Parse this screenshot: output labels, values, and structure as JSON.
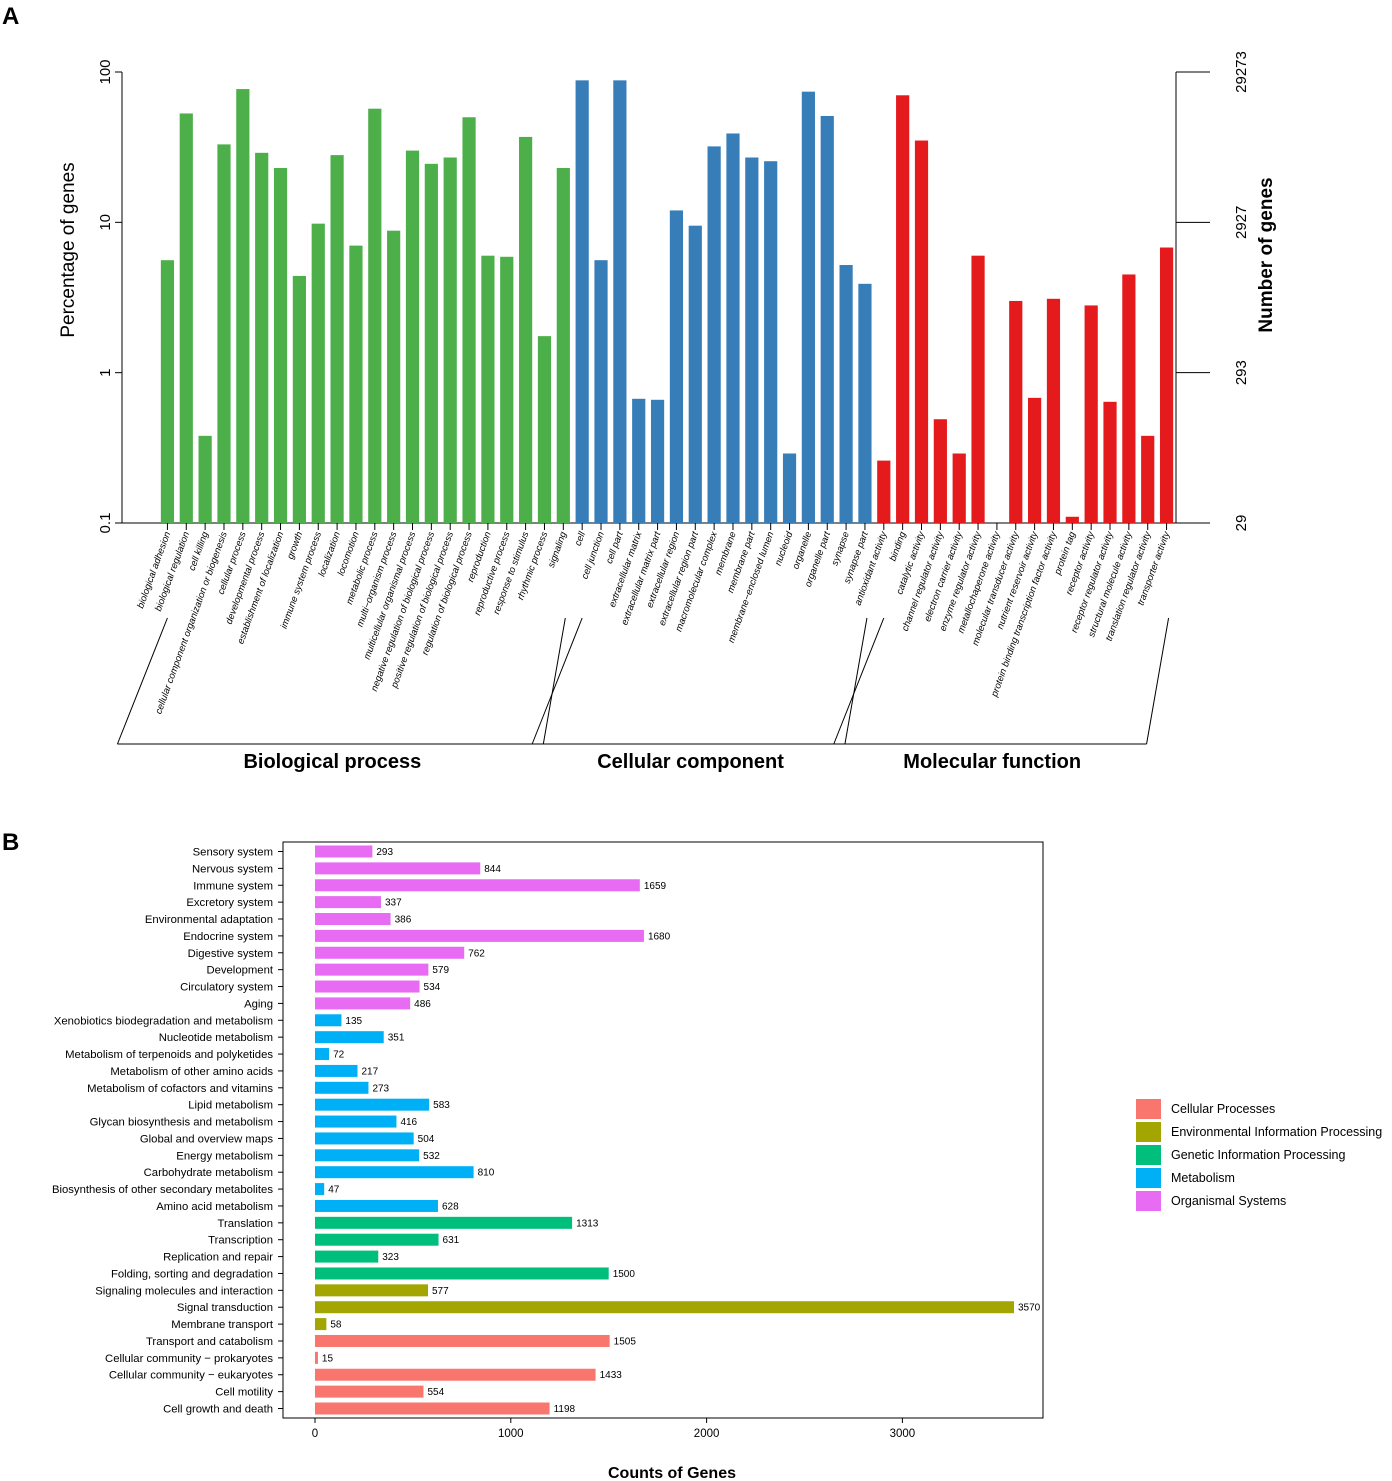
{
  "panel_a_label": "A",
  "panel_b_label": "B",
  "colors": {
    "biological_process": "#4daf4a",
    "cellular_component": "#377eb8",
    "molecular_function": "#e41a1c",
    "cellular_processes": "#f8766d",
    "environmental_information_processing": "#a3a500",
    "genetic_information_processing": "#00bf7d",
    "metabolism": "#00b0f6",
    "organismal_systems": "#e76bf3"
  },
  "chart_data": [
    {
      "type": "bar",
      "title": "",
      "ylabel": "Percentage of genes",
      "ylabel_right": "Number of genes",
      "yscale": "log",
      "ylim": [
        0.1,
        100
      ],
      "yticks": [
        "0.1",
        "1",
        "10",
        "100"
      ],
      "yticks_right": [
        "29",
        "293",
        "2927",
        "29273"
      ],
      "groups": [
        {
          "name": "Biological process",
          "color_key": "biological_process",
          "categories": [
            "biological adhesion",
            "biological regulation",
            "cell killing",
            "cellular component organization or biogenesis",
            "cellular process",
            "developmental process",
            "establishment of localization",
            "growth",
            "immune system process",
            "localization",
            "locomotion",
            "metabolic process",
            "multi−organism process",
            "multicellular organismal process",
            "negative regulation of biological process",
            "positive regulation of biological process",
            "regulation of biological process",
            "reproduction",
            "reproductive process",
            "response to stimulus",
            "rhythmic process",
            "signaling"
          ],
          "values": [
            5.6,
            53,
            0.38,
            33,
            77,
            29,
            23,
            4.4,
            9.8,
            28,
            7.0,
            57,
            8.8,
            30,
            24.5,
            27,
            50,
            6.0,
            5.9,
            37,
            1.75,
            23
          ]
        },
        {
          "name": "Cellular component",
          "color_key": "cellular_component",
          "categories": [
            "cell",
            "cell junction",
            "cell part",
            "extracellular matrix",
            "extracellular matrix part",
            "extracellular region",
            "extracellular region part",
            "macromolecular complex",
            "membrane",
            "membrane part",
            "membrane−enclosed lumen",
            "nucleoid",
            "organelle",
            "organelle part",
            "synapse",
            "synapse part"
          ],
          "values": [
            88,
            5.6,
            88,
            0.67,
            0.66,
            12,
            9.5,
            32,
            39,
            27,
            25.5,
            0.29,
            74,
            51,
            5.2,
            3.9
          ]
        },
        {
          "name": "Molecular function",
          "color_key": "molecular_function",
          "categories": [
            "antioxidant activity",
            "binding",
            "catalytic activity",
            "channel regulator activity",
            "electron carrier activity",
            "enzyme regulator activity",
            "metallochaperone activity",
            "molecular transducer activity",
            "nutrient reservoir activity",
            "protein binding transcription factor activity",
            "protein tag",
            "receptor activity",
            "receptor regulator activity",
            "structural molecule activity",
            "translation regulator activity",
            "transporter activity"
          ],
          "values": [
            0.26,
            70,
            35,
            0.49,
            0.29,
            6.0,
            0.1,
            3.0,
            0.68,
            3.1,
            0.11,
            2.8,
            0.64,
            4.5,
            0.38,
            6.8
          ]
        }
      ]
    },
    {
      "type": "bar",
      "orientation": "horizontal",
      "title": "",
      "xlabel": "Counts of Genes",
      "xlim": [
        -100,
        3650
      ],
      "xticks": [
        0,
        1000,
        2000,
        3000
      ],
      "legend_position": "right",
      "legend": [
        {
          "label": "Cellular Processes",
          "color_key": "cellular_processes"
        },
        {
          "label": "Environmental Information Processing",
          "color_key": "environmental_information_processing"
        },
        {
          "label": "Genetic Information Processing",
          "color_key": "genetic_information_processing"
        },
        {
          "label": "Metabolism",
          "color_key": "metabolism"
        },
        {
          "label": "Organismal Systems",
          "color_key": "organismal_systems"
        }
      ],
      "categories": [
        "Sensory system",
        "Nervous system",
        "Immune system",
        "Excretory system",
        "Environmental adaptation",
        "Endocrine system",
        "Digestive system",
        "Development",
        "Circulatory system",
        "Aging",
        "Xenobiotics biodegradation and metabolism",
        "Nucleotide metabolism",
        "Metabolism of terpenoids and polyketides",
        "Metabolism of other amino acids",
        "Metabolism of cofactors and vitamins",
        "Lipid metabolism",
        "Glycan biosynthesis and metabolism",
        "Global and overview maps",
        "Energy metabolism",
        "Carbohydrate metabolism",
        "Biosynthesis of other secondary metabolites",
        "Amino acid metabolism",
        "Translation",
        "Transcription",
        "Replication and repair",
        "Folding, sorting and degradation",
        "Signaling molecules and interaction",
        "Signal transduction",
        "Membrane transport",
        "Transport and catabolism",
        "Cellular community − prokaryotes",
        "Cellular community − eukaryotes",
        "Cell motility",
        "Cell growth and death"
      ],
      "values": [
        293,
        844,
        1659,
        337,
        386,
        1680,
        762,
        579,
        534,
        486,
        135,
        351,
        72,
        217,
        273,
        583,
        416,
        504,
        532,
        810,
        47,
        628,
        1313,
        631,
        323,
        1500,
        577,
        3570,
        58,
        1505,
        15,
        1433,
        554,
        1198
      ],
      "value_labels": [
        "293",
        "844",
        "1659",
        "337",
        "386",
        "1680",
        "762",
        "579",
        "534",
        "486",
        "135",
        "351",
        "72",
        "217",
        "273",
        "583",
        "416",
        "504",
        "532",
        "810",
        "47",
        "628",
        "1313",
        "631",
        "323",
        "1500",
        "577",
        "3570",
        "58",
        "1505",
        "15",
        "1433",
        "554",
        "1198"
      ],
      "group_keys": [
        "organismal_systems",
        "organismal_systems",
        "organismal_systems",
        "organismal_systems",
        "organismal_systems",
        "organismal_systems",
        "organismal_systems",
        "organismal_systems",
        "organismal_systems",
        "organismal_systems",
        "metabolism",
        "metabolism",
        "metabolism",
        "metabolism",
        "metabolism",
        "metabolism",
        "metabolism",
        "metabolism",
        "metabolism",
        "metabolism",
        "metabolism",
        "metabolism",
        "genetic_information_processing",
        "genetic_information_processing",
        "genetic_information_processing",
        "genetic_information_processing",
        "environmental_information_processing",
        "environmental_information_processing",
        "environmental_information_processing",
        "cellular_processes",
        "cellular_processes",
        "cellular_processes",
        "cellular_processes",
        "cellular_processes"
      ]
    }
  ]
}
